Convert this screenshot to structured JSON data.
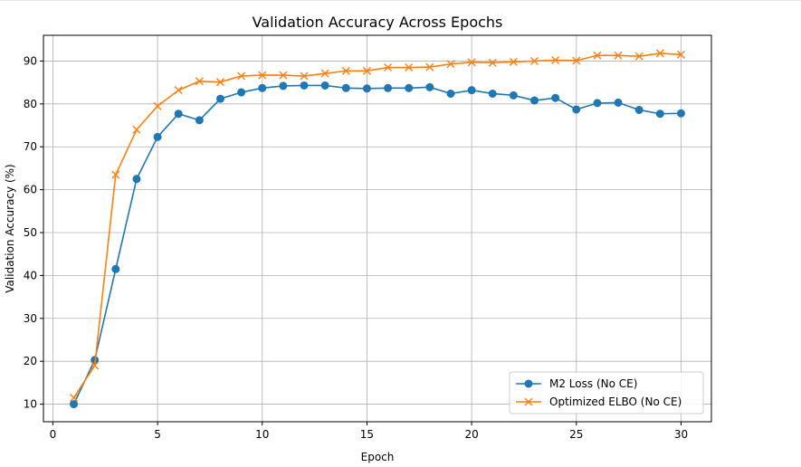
{
  "chart_data": {
    "type": "line",
    "title": "Validation Accuracy Across Epochs",
    "xlabel": "Epoch",
    "ylabel": "Validation Accuracy (%)",
    "xlim": [
      -0.45,
      31.45
    ],
    "ylim": [
      5.9,
      96.0
    ],
    "xticks": [
      0,
      5,
      10,
      15,
      20,
      25,
      30
    ],
    "yticks": [
      10,
      20,
      30,
      40,
      50,
      60,
      70,
      80,
      90
    ],
    "grid": true,
    "legend_position": "lower right",
    "x": [
      1,
      2,
      3,
      4,
      5,
      6,
      7,
      8,
      9,
      10,
      11,
      12,
      13,
      14,
      15,
      16,
      17,
      18,
      19,
      20,
      21,
      22,
      23,
      24,
      25,
      26,
      27,
      28,
      29,
      30
    ],
    "series": [
      {
        "name": "M2 Loss (No CE)",
        "color": "#1f77b4",
        "marker": "circle",
        "values": [
          10.0,
          20.3,
          41.5,
          62.5,
          72.3,
          77.7,
          76.2,
          81.2,
          82.7,
          83.7,
          84.2,
          84.3,
          84.3,
          83.7,
          83.6,
          83.7,
          83.7,
          83.9,
          82.4,
          83.2,
          82.4,
          82.0,
          80.8,
          81.4,
          78.7,
          80.2,
          80.3,
          78.6,
          77.7,
          77.8
        ]
      },
      {
        "name": "Optimized ELBO (No CE)",
        "color": "#ff7f0e",
        "marker": "x",
        "values": [
          11.5,
          19.0,
          63.5,
          74.0,
          79.5,
          83.2,
          85.3,
          85.1,
          86.5,
          86.7,
          86.7,
          86.5,
          87.1,
          87.7,
          87.7,
          88.5,
          88.5,
          88.6,
          89.3,
          89.7,
          89.6,
          89.8,
          90.0,
          90.2,
          90.1,
          91.3,
          91.3,
          91.1,
          91.8,
          91.5
        ]
      }
    ]
  }
}
